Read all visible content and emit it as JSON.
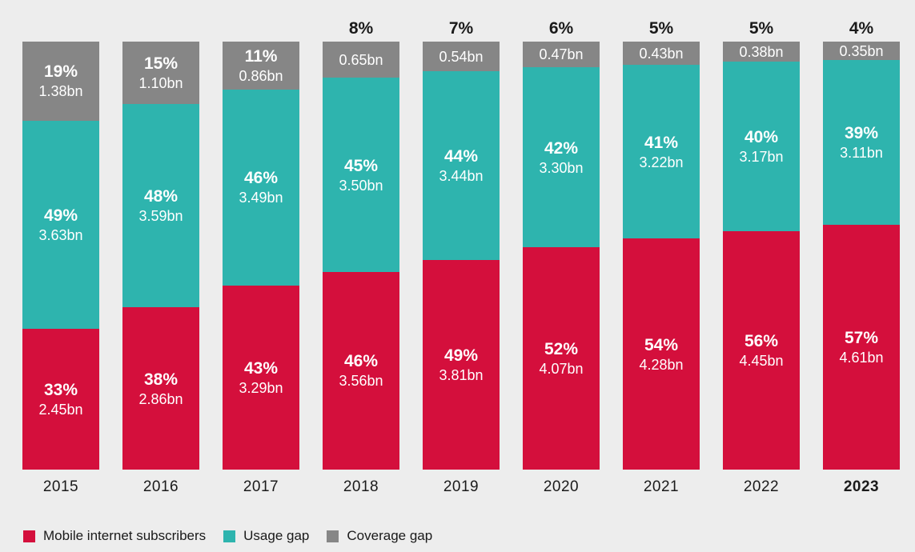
{
  "colors": {
    "background": "#EDEDED",
    "subscribers": "#D40F3C",
    "usage_gap": "#2EB4AE",
    "coverage_gap": "#868686",
    "inside_label": "#FFFFFF",
    "outside_label": "#1A1A1A"
  },
  "chart_data": {
    "type": "bar",
    "stacked": true,
    "stack_mode": "percent-of-total",
    "title": "",
    "xlabel": "",
    "ylabel": "",
    "unit": "billions of people (bn) and share of population (%)",
    "grid": false,
    "legend_position": "bottom-left",
    "categories": [
      "2015",
      "2016",
      "2017",
      "2018",
      "2019",
      "2020",
      "2021",
      "2022",
      "2023"
    ],
    "bold_category": "2023",
    "series": [
      {
        "name": "Mobile internet subscribers",
        "color": "#D40F3C",
        "percents": [
          "33%",
          "38%",
          "43%",
          "46%",
          "49%",
          "52%",
          "54%",
          "56%",
          "57%"
        ],
        "values_bn": [
          2.45,
          2.86,
          3.29,
          3.56,
          3.81,
          4.07,
          4.28,
          4.45,
          4.61
        ],
        "value_labels": [
          "2.45bn",
          "2.86bn",
          "3.29bn",
          "3.56bn",
          "3.81bn",
          "4.07bn",
          "4.28bn",
          "4.45bn",
          "4.61bn"
        ]
      },
      {
        "name": "Usage gap",
        "color": "#2EB4AE",
        "percents": [
          "49%",
          "48%",
          "46%",
          "45%",
          "44%",
          "42%",
          "41%",
          "40%",
          "39%"
        ],
        "values_bn": [
          3.63,
          3.59,
          3.49,
          3.5,
          3.44,
          3.3,
          3.22,
          3.17,
          3.11
        ],
        "value_labels": [
          "3.63bn",
          "3.59bn",
          "3.49bn",
          "3.50bn",
          "3.44bn",
          "3.30bn",
          "3.22bn",
          "3.17bn",
          "3.11bn"
        ]
      },
      {
        "name": "Coverage gap",
        "color": "#868686",
        "percents": [
          "19%",
          "15%",
          "11%",
          "8%",
          "7%",
          "6%",
          "5%",
          "5%",
          "4%"
        ],
        "values_bn": [
          1.38,
          1.1,
          0.86,
          0.65,
          0.54,
          0.47,
          0.43,
          0.38,
          0.35
        ],
        "value_labels": [
          "1.38bn",
          "1.10bn",
          "0.86bn",
          "0.65bn",
          "0.54bn",
          "0.47bn",
          "0.43bn",
          "0.38bn",
          "0.35bn"
        ],
        "percent_outside_from_index": 3
      }
    ],
    "legend": [
      {
        "label": "Mobile internet subscribers",
        "color": "#D40F3C"
      },
      {
        "label": "Usage gap",
        "color": "#2EB4AE"
      },
      {
        "label": "Coverage gap",
        "color": "#868686"
      }
    ]
  }
}
